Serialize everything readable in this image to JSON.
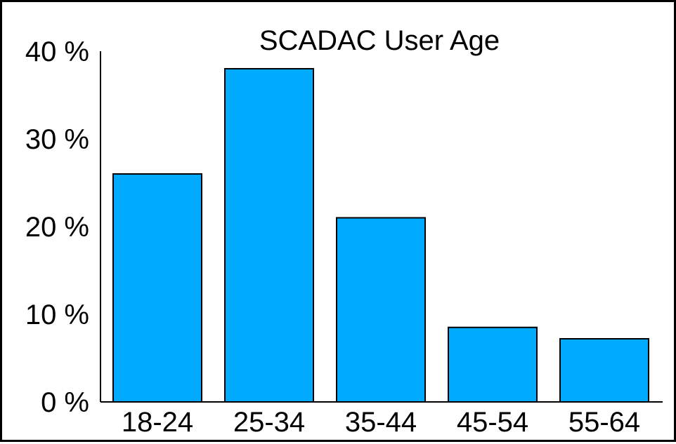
{
  "chart_data": {
    "type": "bar",
    "title": "SCADAC User Age",
    "xlabel": "",
    "ylabel": "",
    "categories": [
      "18-24",
      "25-34",
      "35-44",
      "45-54",
      "55-64"
    ],
    "values": [
      26,
      38,
      21,
      8.5,
      7.2
    ],
    "ylim": [
      0,
      40
    ],
    "yticks": [
      0,
      10,
      20,
      30,
      40
    ],
    "ytick_labels": [
      "0 %",
      "10 %",
      "20 %",
      "30 %",
      "40 %"
    ],
    "bar_color": "#00aaff",
    "grid": false,
    "legend": "none"
  }
}
